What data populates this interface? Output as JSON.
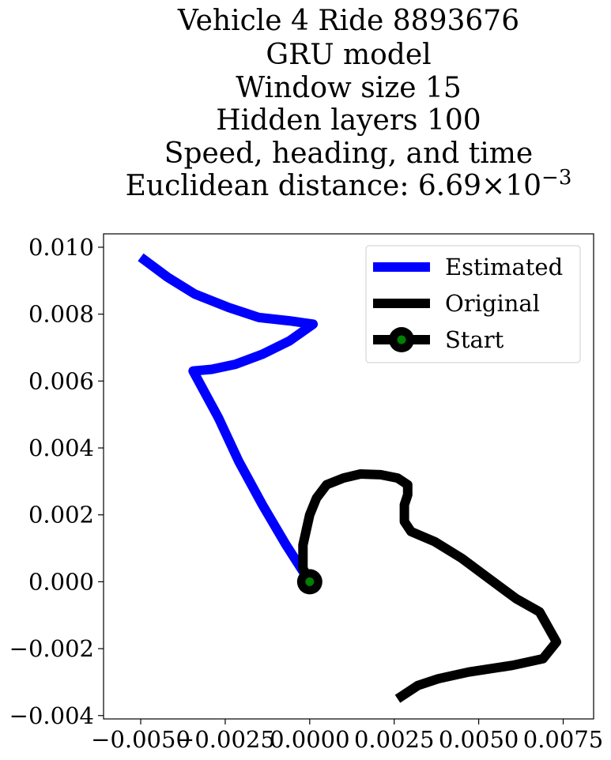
{
  "chart_data": {
    "type": "line",
    "title_lines": [
      "Vehicle 4 Ride 8893676",
      "GRU model",
      "Window size 15",
      "Hidden layers 100",
      "Speed, heading, and time"
    ],
    "metric_label": "Euclidean distance: 6.69",
    "metric_times": "×",
    "metric_base": "10",
    "metric_exponent": "−3",
    "xlabel": "",
    "ylabel": "",
    "xlim": [
      -0.0061,
      0.0084
    ],
    "ylim": [
      -0.0041,
      0.0104
    ],
    "x_ticks": [
      {
        "value": -0.005,
        "label": "−0.0050"
      },
      {
        "value": -0.0025,
        "label": "−0.0025"
      },
      {
        "value": 0.0,
        "label": "0.0000"
      },
      {
        "value": 0.0025,
        "label": "0.0025"
      },
      {
        "value": 0.005,
        "label": "0.0050"
      },
      {
        "value": 0.0075,
        "label": "0.0075"
      }
    ],
    "y_ticks": [
      {
        "value": -0.004,
        "label": "−0.004"
      },
      {
        "value": -0.002,
        "label": "−0.002"
      },
      {
        "value": 0.0,
        "label": "0.000"
      },
      {
        "value": 0.002,
        "label": "0.002"
      },
      {
        "value": 0.004,
        "label": "0.004"
      },
      {
        "value": 0.006,
        "label": "0.006"
      },
      {
        "value": 0.008,
        "label": "0.008"
      },
      {
        "value": 0.01,
        "label": "0.010"
      }
    ],
    "grid": false,
    "legend_position": "top-right",
    "series": [
      {
        "name": "Estimated",
        "color": "#0000ff",
        "points": [
          [
            0.0,
            0.0
          ],
          [
            -0.0007,
            0.0011
          ],
          [
            -0.0014,
            0.0023
          ],
          [
            -0.0021,
            0.0036
          ],
          [
            -0.0027,
            0.0049
          ],
          [
            -0.00345,
            0.0063
          ],
          [
            -0.0029,
            0.00635
          ],
          [
            -0.0022,
            0.0065
          ],
          [
            -0.0014,
            0.0068
          ],
          [
            -0.0006,
            0.0072
          ],
          [
            0.0001,
            0.0077
          ],
          [
            -0.0006,
            0.0078
          ],
          [
            -0.0015,
            0.0079
          ],
          [
            -0.0024,
            0.0082
          ],
          [
            -0.0034,
            0.0086
          ],
          [
            -0.0042,
            0.0091
          ],
          [
            -0.005,
            0.0097
          ]
        ]
      },
      {
        "name": "Original",
        "color": "#000000",
        "points": [
          [
            0.0,
            0.0
          ],
          [
            -0.0002,
            0.0004
          ],
          [
            -0.0002,
            0.0011
          ],
          [
            0.0,
            0.002
          ],
          [
            0.0002,
            0.0025
          ],
          [
            0.0005,
            0.0029
          ],
          [
            0.001,
            0.0031
          ],
          [
            0.0015,
            0.00322
          ],
          [
            0.0021,
            0.0032
          ],
          [
            0.0026,
            0.0031
          ],
          [
            0.0029,
            0.0029
          ],
          [
            0.0029,
            0.0026
          ],
          [
            0.0028,
            0.0023
          ],
          [
            0.0028,
            0.0018
          ],
          [
            0.003,
            0.0015
          ],
          [
            0.0037,
            0.0012
          ],
          [
            0.0045,
            0.0007
          ],
          [
            0.0053,
            0.0001
          ],
          [
            0.0061,
            -0.0005
          ],
          [
            0.0068,
            -0.0009
          ],
          [
            0.0073,
            -0.0018
          ],
          [
            0.0069,
            -0.0023
          ],
          [
            0.006,
            -0.0025
          ],
          [
            0.0047,
            -0.0027
          ],
          [
            0.0038,
            -0.0029
          ],
          [
            0.0032,
            -0.0031
          ],
          [
            0.0026,
            -0.0035
          ]
        ]
      }
    ],
    "start_marker": {
      "name": "Start",
      "x": 0.0,
      "y": 0.0,
      "outer_color": "#000000",
      "inner_color": "#008000"
    }
  }
}
